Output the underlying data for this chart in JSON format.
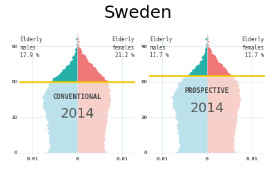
{
  "title": "Sweden",
  "title_fontsize": 18,
  "background_color": "#ffffff",
  "grid_color": "#ccddee",
  "conventional_label": "CONVENTIONAL",
  "prospective_label": "PROSPECTIVE",
  "year_label": "2014",
  "elderly_male_conv": "17.9 %",
  "elderly_female_conv": "21.2 %",
  "elderly_male_prosp": "11.7 %",
  "elderly_female_prosp": "11.7 %",
  "teal_color": "#1AADA4",
  "pink_color": "#F07070",
  "teal_light": "#B0DDE8",
  "pink_light": "#F5C8C0",
  "yellow_line": "#F0C800",
  "xlim": 0.013,
  "yticks": [
    0,
    30,
    60,
    90
  ],
  "xticks": [
    -0.01,
    0,
    0.01
  ],
  "xlabel_labels": [
    "0.01",
    "0",
    "0.01"
  ],
  "conv_cutoff_age": 60,
  "prosp_cutoff_age": 65,
  "label_fontsize": 7,
  "year_fontsize": 14,
  "tick_fontsize": 5,
  "annot_fontsize": 5.5
}
